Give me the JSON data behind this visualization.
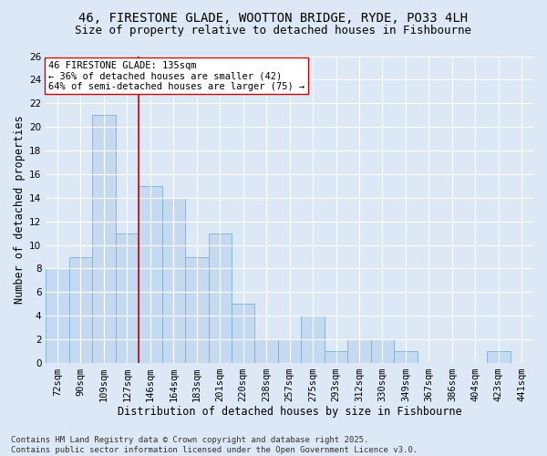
{
  "title_line1": "46, FIRESTONE GLADE, WOOTTON BRIDGE, RYDE, PO33 4LH",
  "title_line2": "Size of property relative to detached houses in Fishbourne",
  "xlabel": "Distribution of detached houses by size in Fishbourne",
  "ylabel": "Number of detached properties",
  "categories": [
    "72sqm",
    "90sqm",
    "109sqm",
    "127sqm",
    "146sqm",
    "164sqm",
    "183sqm",
    "201sqm",
    "220sqm",
    "238sqm",
    "257sqm",
    "275sqm",
    "293sqm",
    "312sqm",
    "330sqm",
    "349sqm",
    "367sqm",
    "386sqm",
    "404sqm",
    "423sqm",
    "441sqm"
  ],
  "values": [
    8,
    9,
    21,
    11,
    15,
    14,
    9,
    11,
    5,
    2,
    2,
    4,
    1,
    2,
    2,
    1,
    0,
    0,
    0,
    1,
    0
  ],
  "bar_color": "#c5d9f0",
  "bar_edge_color": "#7bafd4",
  "background_color": "#dce8f5",
  "grid_color": "#ffffff",
  "redline_x": 3.5,
  "annotation_text_line1": "46 FIRESTONE GLADE: 135sqm",
  "annotation_text_line2": "← 36% of detached houses are smaller (42)",
  "annotation_text_line3": "64% of semi-detached houses are larger (75) →",
  "annotation_box_color": "#ffffff",
  "annotation_box_edge": "#cc0000",
  "ylim": [
    0,
    26
  ],
  "yticks": [
    0,
    2,
    4,
    6,
    8,
    10,
    12,
    14,
    16,
    18,
    20,
    22,
    24,
    26
  ],
  "redline_color": "#cc0000",
  "title_fontsize": 10,
  "subtitle_fontsize": 9,
  "axis_label_fontsize": 8.5,
  "tick_fontsize": 7.5,
  "annotation_fontsize": 7.5,
  "footer_fontsize": 6.5,
  "footer_line1": "Contains HM Land Registry data © Crown copyright and database right 2025.",
  "footer_line2": "Contains public sector information licensed under the Open Government Licence v3.0."
}
